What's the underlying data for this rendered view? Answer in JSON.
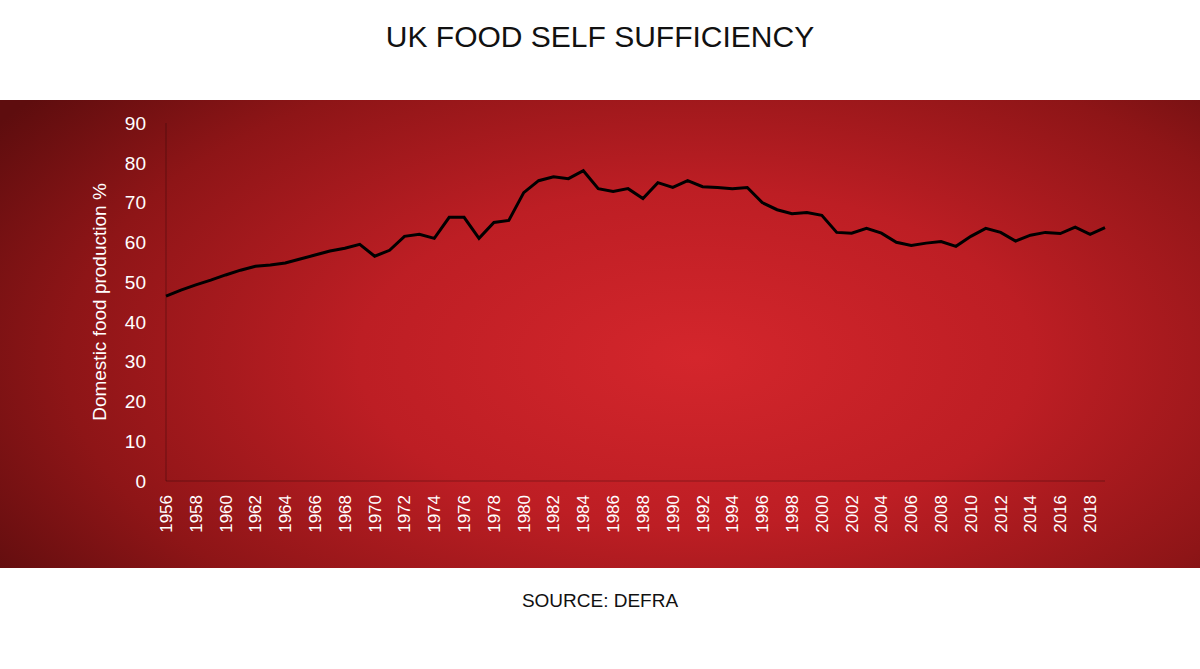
{
  "chart_data": {
    "type": "line",
    "title": "UK FOOD SELF SUFFICIENCY",
    "y_label": "Domestic food production %",
    "source": "SOURCE: DEFRA",
    "categories": [
      "1956",
      null,
      "1958",
      null,
      "1960",
      null,
      "1962",
      null,
      "1964",
      null,
      "1966",
      null,
      "1968",
      null,
      "1970",
      null,
      "1972",
      null,
      "1974",
      null,
      "1976",
      null,
      "1978",
      null,
      "1980",
      null,
      "1982",
      null,
      "1984",
      null,
      "1986",
      null,
      "1988",
      null,
      "1990",
      null,
      "1992",
      null,
      "1994",
      null,
      "1996",
      null,
      "1998",
      null,
      "2000",
      null,
      "2002",
      null,
      "2004",
      null,
      "2006",
      null,
      "2008",
      null,
      "2010",
      null,
      "2012",
      null,
      "2014",
      null,
      "2016",
      null,
      "2018",
      null
    ],
    "values": [
      46.5,
      48,
      49.3,
      50.5,
      51.8,
      53,
      54,
      54.3,
      54.8,
      55.8,
      56.8,
      57.8,
      58.5,
      59.5,
      56.5,
      58,
      61.5,
      62,
      61,
      66.3,
      66.3,
      61,
      65,
      65.5,
      72.5,
      75.5,
      76.5,
      76,
      78,
      73.5,
      72.8,
      73.5,
      71,
      75,
      73.8,
      75.5,
      74,
      73.8,
      73.5,
      73.8,
      70,
      68.2,
      67.2,
      67.5,
      66.8,
      62.5,
      62.3,
      63.5,
      62.3,
      60,
      59.2,
      59.8,
      60.2,
      59,
      61.5,
      63.5,
      62.5,
      60.3,
      61.8,
      62.5,
      62.2,
      63.8,
      62,
      63.7
    ],
    "color": "#000000",
    "ylim": [
      0,
      90
    ],
    "yticks": [
      0,
      10,
      20,
      30,
      40,
      50,
      60,
      70,
      80,
      90
    ],
    "grid": false
  }
}
